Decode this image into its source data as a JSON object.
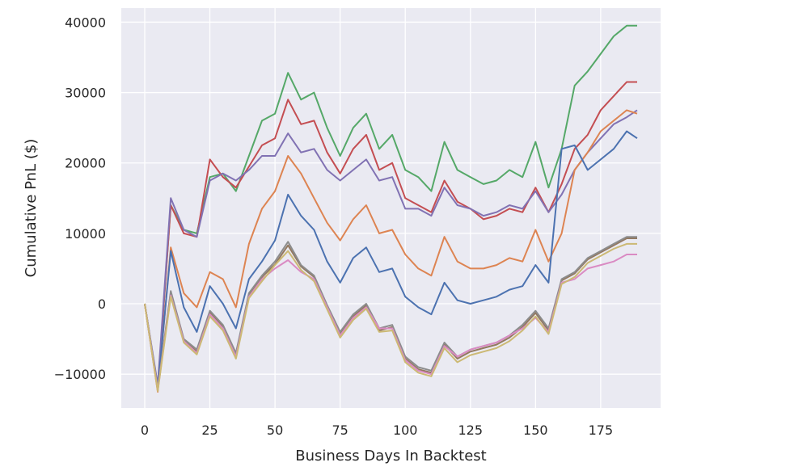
{
  "chart_data": {
    "type": "line",
    "title": "",
    "xlabel": "Business Days In Backtest",
    "ylabel": "Cumulative PnL ($)",
    "xlim": [
      -9,
      198
    ],
    "ylim": [
      -14800,
      42000
    ],
    "xticks": [
      0,
      25,
      50,
      75,
      100,
      125,
      150,
      175
    ],
    "yticks": [
      -10000,
      0,
      10000,
      20000,
      30000,
      40000
    ],
    "ytick_labels": [
      "−10000",
      "0",
      "10000",
      "20000",
      "30000",
      "40000"
    ],
    "grid": true,
    "legend": "none",
    "colors": {
      "background": "#eaeaf2",
      "grid": "#ffffff"
    },
    "series": [
      {
        "color": "#55a868",
        "x": [
          0,
          5,
          10,
          15,
          20,
          25,
          30,
          35,
          40,
          45,
          50,
          55,
          60,
          65,
          70,
          75,
          80,
          85,
          90,
          95,
          100,
          105,
          110,
          115,
          120,
          125,
          130,
          135,
          140,
          145,
          150,
          155,
          160,
          165,
          170,
          175,
          180,
          185,
          189
        ],
        "values": [
          0,
          -12000,
          14000,
          10500,
          10000,
          18000,
          18500,
          16000,
          21000,
          26000,
          27000,
          32800,
          29000,
          30000,
          25000,
          21000,
          25000,
          27000,
          22000,
          24000,
          19000,
          18000,
          16000,
          23000,
          19000,
          18000,
          17000,
          17500,
          19000,
          18000,
          23000,
          16500,
          22000,
          31000,
          33000,
          35500,
          38000,
          39500,
          39500
        ]
      },
      {
        "color": "#c44e52",
        "x": [
          0,
          5,
          10,
          15,
          20,
          25,
          30,
          35,
          40,
          45,
          50,
          55,
          60,
          65,
          70,
          75,
          80,
          85,
          90,
          95,
          100,
          105,
          110,
          115,
          120,
          125,
          130,
          135,
          140,
          145,
          150,
          155,
          160,
          165,
          170,
          175,
          180,
          185,
          189
        ],
        "values": [
          0,
          -12000,
          14000,
          10000,
          9500,
          20500,
          18000,
          16500,
          19500,
          22500,
          23500,
          29000,
          25500,
          26000,
          21500,
          18500,
          22000,
          24000,
          19000,
          20000,
          15000,
          14000,
          13000,
          17500,
          14500,
          13500,
          12000,
          12500,
          13500,
          13000,
          16500,
          13000,
          17000,
          22000,
          24000,
          27500,
          29500,
          31500,
          31500
        ]
      },
      {
        "color": "#8172b3",
        "x": [
          0,
          5,
          10,
          15,
          20,
          25,
          30,
          35,
          40,
          45,
          50,
          55,
          60,
          65,
          70,
          75,
          80,
          85,
          90,
          95,
          100,
          105,
          110,
          115,
          120,
          125,
          130,
          135,
          140,
          145,
          150,
          155,
          160,
          165,
          170,
          175,
          180,
          185,
          189
        ],
        "values": [
          0,
          -11500,
          15000,
          10500,
          9500,
          17500,
          18500,
          17500,
          19000,
          21000,
          21000,
          24200,
          21500,
          22000,
          19000,
          17500,
          19000,
          20500,
          17500,
          18000,
          13500,
          13500,
          12500,
          16500,
          14000,
          13500,
          12500,
          13000,
          14000,
          13500,
          16000,
          13000,
          15500,
          19000,
          21500,
          23500,
          25500,
          26500,
          27500
        ]
      },
      {
        "color": "#dd8452",
        "x": [
          0,
          5,
          10,
          15,
          20,
          25,
          30,
          35,
          40,
          45,
          50,
          55,
          60,
          65,
          70,
          75,
          80,
          85,
          90,
          95,
          100,
          105,
          110,
          115,
          120,
          125,
          130,
          135,
          140,
          145,
          150,
          155,
          160,
          165,
          170,
          175,
          180,
          185,
          189
        ],
        "values": [
          0,
          -12500,
          8000,
          1500,
          -500,
          4500,
          3500,
          -500,
          8500,
          13500,
          16000,
          21000,
          18500,
          15000,
          11500,
          9000,
          12000,
          14000,
          10000,
          10500,
          7000,
          5000,
          4000,
          9500,
          6000,
          5000,
          5000,
          5500,
          6500,
          6000,
          10500,
          6000,
          10000,
          19000,
          21500,
          24500,
          26000,
          27500,
          27000
        ]
      },
      {
        "color": "#4c72b0",
        "x": [
          0,
          5,
          10,
          15,
          20,
          25,
          30,
          35,
          40,
          45,
          50,
          55,
          60,
          65,
          70,
          75,
          80,
          85,
          90,
          95,
          100,
          105,
          110,
          115,
          120,
          125,
          130,
          135,
          140,
          145,
          150,
          155,
          160,
          165,
          170,
          175,
          180,
          185,
          189
        ],
        "values": [
          0,
          -12000,
          7500,
          -500,
          -4000,
          2500,
          0,
          -3500,
          3500,
          6000,
          9000,
          15500,
          12500,
          10500,
          6000,
          3000,
          6500,
          8000,
          4500,
          5000,
          1000,
          -500,
          -1500,
          3000,
          500,
          0,
          500,
          1000,
          2000,
          2500,
          5500,
          3000,
          22000,
          22500,
          19000,
          20500,
          22000,
          24500,
          23500
        ]
      },
      {
        "color": "#937860",
        "x": [
          0,
          5,
          10,
          15,
          20,
          25,
          30,
          35,
          40,
          45,
          50,
          55,
          60,
          65,
          70,
          75,
          80,
          85,
          90,
          95,
          100,
          105,
          110,
          115,
          120,
          125,
          130,
          135,
          140,
          145,
          150,
          155,
          160,
          165,
          170,
          175,
          180,
          185,
          189
        ],
        "values": [
          0,
          -12200,
          1500,
          -5200,
          -6800,
          -1200,
          -3300,
          -7300,
          1200,
          3800,
          5600,
          8300,
          5300,
          3800,
          -500,
          -4300,
          -1800,
          -200,
          -3800,
          -3300,
          -7800,
          -9300,
          -9800,
          -5800,
          -7800,
          -6800,
          -6300,
          -5800,
          -4800,
          -3300,
          -1300,
          -3800,
          3300,
          4300,
          6300,
          7300,
          8300,
          9300,
          9300
        ]
      },
      {
        "color": "#8c8c8c",
        "x": [
          0,
          5,
          10,
          15,
          20,
          25,
          30,
          35,
          40,
          45,
          50,
          55,
          60,
          65,
          70,
          75,
          80,
          85,
          90,
          95,
          100,
          105,
          110,
          115,
          120,
          125,
          130,
          135,
          140,
          145,
          150,
          155,
          160,
          165,
          170,
          175,
          180,
          185,
          189
        ],
        "values": [
          0,
          -12000,
          1800,
          -5000,
          -6500,
          -1000,
          -3000,
          -7000,
          1500,
          4000,
          6000,
          8800,
          5500,
          4000,
          -200,
          -4000,
          -1500,
          0,
          -3500,
          -3000,
          -7500,
          -9000,
          -9500,
          -5500,
          -7500,
          -6500,
          -6000,
          -5500,
          -4500,
          -3000,
          -1000,
          -3500,
          3500,
          4500,
          6500,
          7500,
          8500,
          9500,
          9500
        ]
      },
      {
        "color": "#da8bc3",
        "x": [
          0,
          5,
          10,
          15,
          20,
          25,
          30,
          35,
          40,
          45,
          50,
          55,
          60,
          65,
          70,
          75,
          80,
          85,
          90,
          95,
          100,
          105,
          110,
          115,
          120,
          125,
          130,
          135,
          140,
          145,
          150,
          155,
          160,
          165,
          170,
          175,
          180,
          185,
          189
        ],
        "values": [
          0,
          -12300,
          1200,
          -5300,
          -7000,
          -1500,
          -3500,
          -7500,
          1000,
          3500,
          5000,
          6200,
          4500,
          3500,
          -500,
          -4500,
          -2000,
          -500,
          -3500,
          -3500,
          -8000,
          -9500,
          -10000,
          -6000,
          -7500,
          -6500,
          -6000,
          -5500,
          -4500,
          -3500,
          -2000,
          -4000,
          3000,
          3500,
          5000,
          5500,
          6000,
          7000,
          7000
        ]
      },
      {
        "color": "#ccb974",
        "x": [
          0,
          5,
          10,
          15,
          20,
          25,
          30,
          35,
          40,
          45,
          50,
          55,
          60,
          65,
          70,
          75,
          80,
          85,
          90,
          95,
          100,
          105,
          110,
          115,
          120,
          125,
          130,
          135,
          140,
          145,
          150,
          155,
          160,
          165,
          170,
          175,
          180,
          185,
          189
        ],
        "values": [
          0,
          -12400,
          1000,
          -5500,
          -7200,
          -1800,
          -3800,
          -7800,
          800,
          3200,
          5500,
          7500,
          4800,
          3200,
          -800,
          -4800,
          -2300,
          -700,
          -4000,
          -3800,
          -8300,
          -9800,
          -10300,
          -6300,
          -8300,
          -7300,
          -6800,
          -6300,
          -5300,
          -3800,
          -1800,
          -4300,
          2800,
          3800,
          5800,
          6800,
          7800,
          8500,
          8500
        ]
      }
    ]
  }
}
